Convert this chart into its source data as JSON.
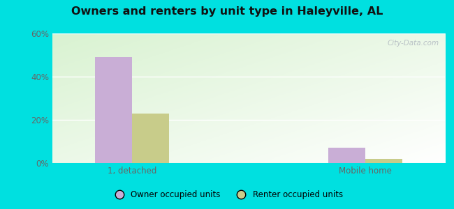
{
  "title": "Owners and renters by unit type in Haleyville, AL",
  "categories": [
    "1, detached",
    "Mobile home"
  ],
  "owner_values": [
    49,
    7
  ],
  "renter_values": [
    23,
    2
  ],
  "owner_color": "#c9aed6",
  "renter_color": "#c8cc8a",
  "ylim": [
    0,
    60
  ],
  "yticks": [
    0,
    20,
    40,
    60
  ],
  "ytick_labels": [
    "0%",
    "20%",
    "40%",
    "60%"
  ],
  "legend_owner": "Owner occupied units",
  "legend_renter": "Renter occupied units",
  "bar_width": 0.3,
  "outer_color": "#00e0e0",
  "watermark": "City-Data.com",
  "group_positions": [
    0.55,
    2.45
  ],
  "xlim": [
    -0.1,
    3.1
  ]
}
